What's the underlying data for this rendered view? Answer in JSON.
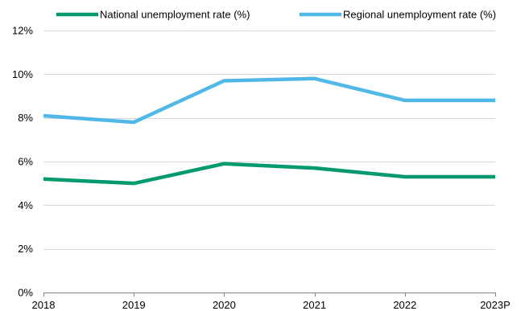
{
  "chart_data": {
    "type": "line",
    "title": "",
    "xlabel": "",
    "ylabel": "",
    "categories": [
      "2018",
      "2019",
      "2020",
      "2021",
      "2022",
      "2023P"
    ],
    "ylim": [
      0,
      12
    ],
    "yticks": [
      0,
      2,
      4,
      6,
      8,
      10,
      12
    ],
    "ytick_labels": [
      "0%",
      "2%",
      "4%",
      "6%",
      "8%",
      "10%",
      "12%"
    ],
    "grid": "horizontal",
    "legend_position": "top",
    "series": [
      {
        "name": "National unemployment rate (%)",
        "color": "#009a6e",
        "values": [
          5.2,
          5.0,
          5.9,
          5.7,
          5.3,
          5.3
        ]
      },
      {
        "name": "Regional unemployment rate (%)",
        "color": "#4fb8e6",
        "values": [
          8.1,
          7.8,
          9.7,
          9.8,
          8.8,
          8.8
        ]
      }
    ]
  }
}
